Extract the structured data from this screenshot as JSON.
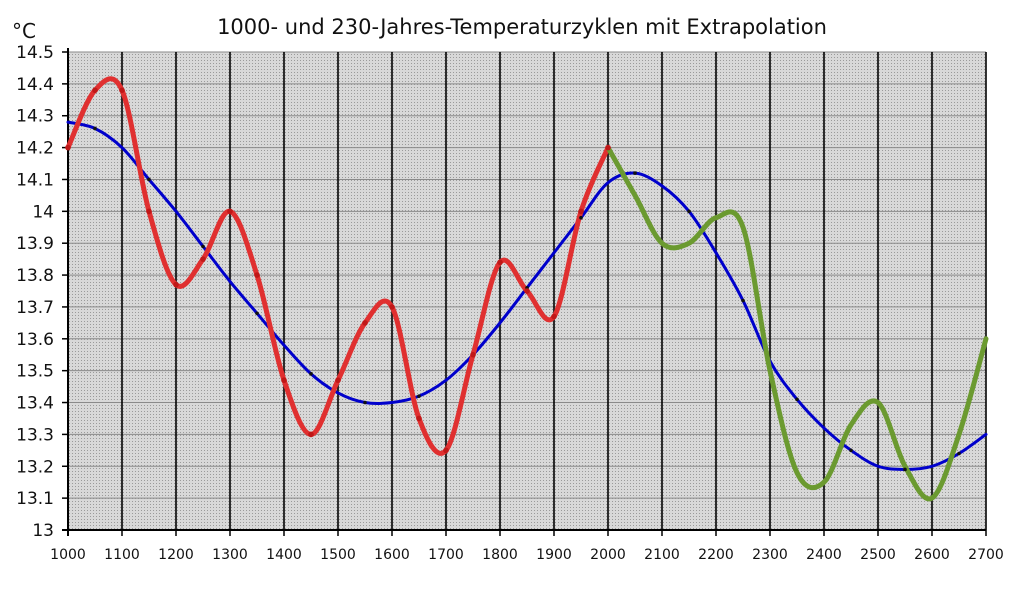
{
  "chart_data": {
    "type": "line",
    "title": "1000- und 230-Jahres-Temperaturzyklen mit Extrapolation",
    "ylabel": "°C",
    "xlabel": "",
    "xlim": [
      1000,
      2700
    ],
    "ylim": [
      13,
      14.5
    ],
    "xticks": [
      1000,
      1100,
      1200,
      1300,
      1400,
      1500,
      1600,
      1700,
      1800,
      1900,
      2000,
      2100,
      2200,
      2300,
      2400,
      2500,
      2600,
      2700
    ],
    "yticks": [
      13,
      13.1,
      13.2,
      13.3,
      13.4,
      13.5,
      13.6,
      13.7,
      13.8,
      13.9,
      14,
      14.1,
      14.2,
      14.3,
      14.4,
      14.5
    ],
    "grid": true,
    "series": [
      {
        "color": "#0000cc",
        "x": [
          1000,
          1050,
          1100,
          1150,
          1200,
          1250,
          1300,
          1350,
          1400,
          1450,
          1500,
          1550,
          1600,
          1650,
          1700,
          1750,
          1800,
          1850,
          1900,
          1950,
          2000,
          2050,
          2100,
          2150,
          2200,
          2250,
          2300,
          2350,
          2400,
          2450,
          2500,
          2550,
          2600,
          2650,
          2700
        ],
        "y": [
          14.28,
          14.26,
          14.2,
          14.1,
          14.0,
          13.89,
          13.78,
          13.68,
          13.58,
          13.49,
          13.43,
          13.4,
          13.4,
          13.42,
          13.47,
          13.55,
          13.65,
          13.76,
          13.87,
          13.98,
          14.09,
          14.12,
          14.08,
          14.0,
          13.87,
          13.72,
          13.53,
          13.41,
          13.32,
          13.25,
          13.2,
          13.19,
          13.2,
          13.24,
          13.3
        ]
      },
      {
        "color": "#e03030",
        "x": [
          1000,
          1050,
          1100,
          1150,
          1200,
          1250,
          1300,
          1350,
          1400,
          1450,
          1500,
          1550,
          1600,
          1650,
          1700,
          1750,
          1800,
          1850,
          1900,
          1950,
          2000
        ],
        "y": [
          14.2,
          14.38,
          14.38,
          14.0,
          13.77,
          13.85,
          14.0,
          13.8,
          13.47,
          13.3,
          13.47,
          13.65,
          13.7,
          13.35,
          13.25,
          13.55,
          13.84,
          13.75,
          13.67,
          14.0,
          14.2
        ]
      },
      {
        "color": "#6b9a30",
        "x": [
          2000,
          2050,
          2100,
          2150,
          2200,
          2250,
          2300,
          2350,
          2400,
          2450,
          2500,
          2550,
          2600,
          2650,
          2700
        ],
        "y": [
          14.2,
          14.05,
          13.9,
          13.9,
          13.98,
          13.95,
          13.5,
          13.18,
          13.15,
          13.33,
          13.4,
          13.2,
          13.1,
          13.3,
          13.6
        ]
      }
    ]
  }
}
